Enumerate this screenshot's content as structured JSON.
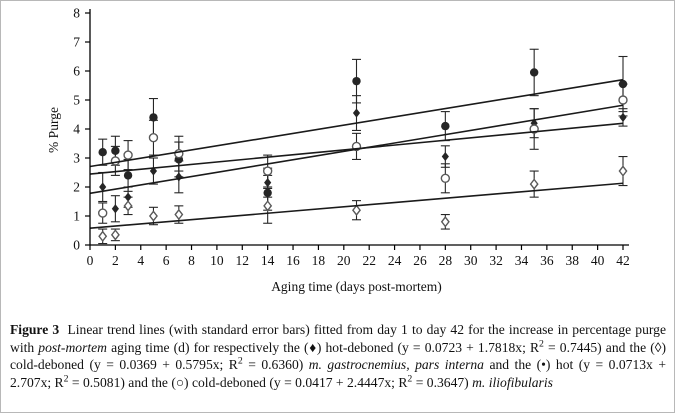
{
  "chart_data": {
    "type": "scatter",
    "title": "",
    "xlabel": "Aging time (days post-mortem)",
    "ylabel": "% Purge",
    "xlim": [
      0,
      42
    ],
    "ylim": [
      0,
      8
    ],
    "x_ticks": [
      0,
      2,
      4,
      6,
      8,
      10,
      12,
      14,
      16,
      18,
      20,
      22,
      24,
      26,
      28,
      30,
      32,
      34,
      36,
      38,
      40,
      42
    ],
    "y_ticks": [
      0,
      1,
      2,
      3,
      4,
      5,
      6,
      7,
      8
    ],
    "grid": false,
    "legend_position": "none",
    "x_days": [
      1,
      2,
      3,
      5,
      7,
      14,
      21,
      28,
      35,
      42
    ],
    "series": [
      {
        "name": "hot-deboned m. gastrocnemius, pars interna",
        "marker": "filled-diamond",
        "glyph": "♦",
        "color": "#1f1f1f",
        "x": [
          1,
          2,
          3,
          5,
          7,
          14,
          21,
          28,
          35,
          42
        ],
        "y": [
          2.0,
          1.25,
          1.65,
          2.55,
          2.35,
          2.15,
          4.55,
          3.05,
          4.2,
          4.4
        ],
        "err": [
          0.5,
          0.45,
          0.35,
          0.45,
          0.55,
          0.5,
          0.6,
          0.37,
          0.5,
          0.3
        ],
        "trend": {
          "intercept": 1.7818,
          "slope": 0.0723,
          "equation": "y = 0.0723 + 1.7818x",
          "r2": 0.7445
        }
      },
      {
        "name": "cold-deboned m. gastrocnemius, pars interna",
        "marker": "open-diamond",
        "glyph": "◊",
        "color": "#5a5a5a",
        "x": [
          1,
          2,
          3,
          5,
          7,
          14,
          21,
          28,
          35,
          42
        ],
        "y": [
          0.3,
          0.35,
          1.35,
          1.0,
          1.05,
          1.35,
          1.2,
          0.8,
          2.1,
          2.55
        ],
        "err": [
          0.25,
          0.2,
          0.3,
          0.3,
          0.3,
          0.6,
          0.33,
          0.25,
          0.45,
          0.5
        ],
        "trend": {
          "intercept": 0.5795,
          "slope": 0.0369,
          "equation": "y = 0.0369 + 0.5795x",
          "r2": 0.636
        }
      },
      {
        "name": "hot-deboned m. iliofibularis",
        "marker": "filled-circle",
        "glyph": "•",
        "color": "#1f1f1f",
        "x": [
          1,
          2,
          3,
          5,
          7,
          14,
          21,
          28,
          35,
          42
        ],
        "y": [
          3.2,
          3.25,
          2.4,
          4.4,
          2.95,
          1.8,
          5.65,
          4.1,
          5.95,
          5.55
        ],
        "err": [
          0.45,
          0.5,
          0.55,
          0.65,
          0.6,
          0.6,
          0.75,
          0.5,
          0.8,
          0.95
        ],
        "trend": {
          "intercept": 2.707,
          "slope": 0.0713,
          "equation": "y = 0.0713x + 2.707x",
          "r2": 0.5081
        }
      },
      {
        "name": "cold-deboned m. iliofibularis",
        "marker": "open-circle",
        "glyph": "○",
        "color": "#5a5a5a",
        "x": [
          1,
          2,
          3,
          5,
          7,
          14,
          21,
          28,
          35,
          42
        ],
        "y": [
          1.1,
          2.9,
          3.1,
          3.7,
          3.15,
          2.55,
          3.4,
          2.3,
          4.0,
          5.0
        ],
        "err": [
          0.35,
          0.5,
          0.5,
          0.6,
          0.6,
          0.55,
          0.45,
          0.5,
          0.7,
          0.55
        ],
        "trend": {
          "intercept": 2.4447,
          "slope": 0.0417,
          "equation": "y = 0.0417 + 2.4447x",
          "r2": 0.3647
        }
      }
    ],
    "axis_color": "#000000",
    "trend_line_color": "#1a1a1a"
  },
  "caption": {
    "segments": [
      {
        "t": "Figure 3",
        "s": "bold"
      },
      {
        "t": "  Linear trend lines (with standard error bars) fitted from day 1 to day 42 for the increase in percentage purge with ",
        "s": "normal"
      },
      {
        "t": "post-mortem",
        "s": "italic"
      },
      {
        "t": " aging time (d) for respectively the (♦) hot-deboned (y = 0.0723 + 1.7818x; R",
        "s": "normal"
      },
      {
        "t": "2",
        "s": "sup"
      },
      {
        "t": " = 0.7445) and the (◊) cold-deboned (y = 0.0369 + 0.5795x; R",
        "s": "normal"
      },
      {
        "t": "2",
        "s": "sup"
      },
      {
        "t": " = 0.6360) ",
        "s": "normal"
      },
      {
        "t": "m. gastrocnemius, pars interna",
        "s": "italic"
      },
      {
        "t": " and the (•) hot (y = 0.0713x + 2.707x; R",
        "s": "normal"
      },
      {
        "t": "2",
        "s": "sup"
      },
      {
        "t": " = 0.5081) and the (○) cold-deboned (y = 0.0417 + 2.4447x; R",
        "s": "normal"
      },
      {
        "t": "2",
        "s": "sup"
      },
      {
        "t": " = 0.3647) ",
        "s": "normal"
      },
      {
        "t": "m. iliofibularis",
        "s": "italic"
      }
    ]
  }
}
